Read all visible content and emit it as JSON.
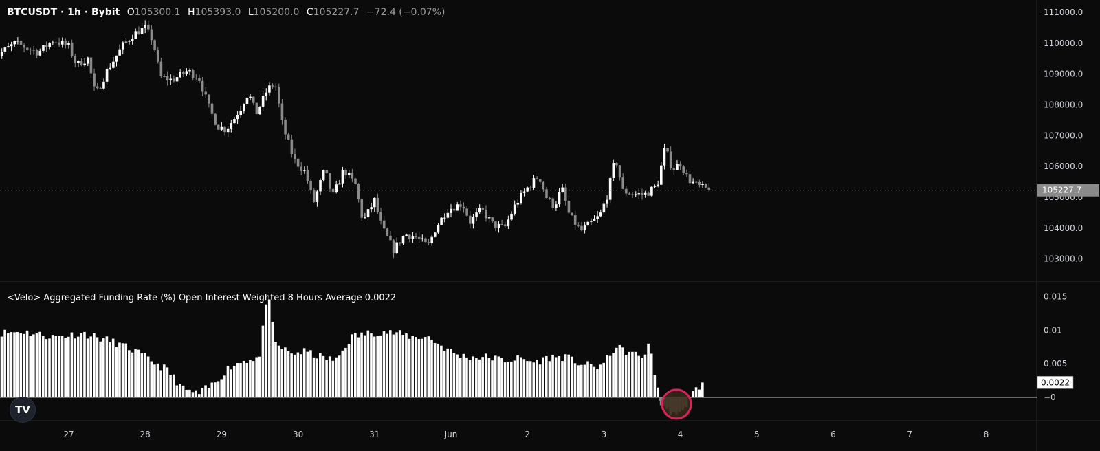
{
  "header": {
    "symbol": "BTCUSDT · 1h · Bybit",
    "open_label": "O",
    "open": "105300.1",
    "high_label": "H",
    "high": "105393.0",
    "low_label": "L",
    "low": "105200.0",
    "close_label": "C",
    "close": "105227.7",
    "change": "−72.4 (−0.07%)"
  },
  "indicator": {
    "title": "<Velo> Aggregated Funding Rate (%) Open Interest Weighted 8 Hours Average 0.0022",
    "value_tag": "0.0022"
  },
  "logo_text": "TV",
  "colors": {
    "background": "#0b0b0b",
    "candle_up": "#ffffff",
    "candle_down": "#8a8a8a",
    "price_tag": "#8a8a8a",
    "highlight_circle": "#d6245a",
    "highlight_fill": "#3a2a1a"
  },
  "chart_data": [
    {
      "type": "candlestick",
      "title": "BTCUSDT · 1h · Bybit",
      "y_ticks": [
        "103000.0",
        "104000.0",
        "105000.0",
        "106000.0",
        "107000.0",
        "108000.0",
        "109000.0",
        "110000.0",
        "111000.0"
      ],
      "ylim": [
        102300,
        111400
      ],
      "x_ticks": [
        "27",
        "28",
        "29",
        "30",
        "31",
        "Jun",
        "2",
        "3",
        "4",
        "5",
        "6",
        "7",
        "8"
      ],
      "last_price": "105227.7",
      "close_path": [
        [
          26.0,
          109500
        ],
        [
          26.3,
          110000
        ],
        [
          26.6,
          109700
        ],
        [
          26.8,
          110100
        ],
        [
          27.0,
          109900
        ],
        [
          27.1,
          109300
        ],
        [
          27.25,
          109500
        ],
        [
          27.35,
          108300
        ],
        [
          27.5,
          109100
        ],
        [
          27.7,
          109900
        ],
        [
          27.85,
          110300
        ],
        [
          28.0,
          110500
        ],
        [
          28.1,
          110100
        ],
        [
          28.2,
          108900
        ],
        [
          28.35,
          108800
        ],
        [
          28.55,
          109100
        ],
        [
          28.7,
          108900
        ],
        [
          28.85,
          107800
        ],
        [
          28.95,
          107300
        ],
        [
          29.05,
          107200
        ],
        [
          29.15,
          107500
        ],
        [
          29.25,
          107900
        ],
        [
          29.35,
          108400
        ],
        [
          29.45,
          107700
        ],
        [
          29.6,
          108500
        ],
        [
          29.7,
          108700
        ],
        [
          29.8,
          107300
        ],
        [
          29.95,
          106200
        ],
        [
          30.1,
          105800
        ],
        [
          30.2,
          104800
        ],
        [
          30.35,
          105900
        ],
        [
          30.45,
          105000
        ],
        [
          30.6,
          105900
        ],
        [
          30.75,
          105400
        ],
        [
          30.85,
          104200
        ],
        [
          31.0,
          104900
        ],
        [
          31.1,
          104000
        ],
        [
          31.25,
          103300
        ],
        [
          31.4,
          103800
        ],
        [
          31.55,
          103700
        ],
        [
          31.7,
          103400
        ],
        [
          31.8,
          104000
        ],
        [
          31.95,
          104600
        ],
        [
          32.05,
          104700
        ],
        [
          32.15,
          104800
        ],
        [
          32.25,
          104200
        ],
        [
          32.4,
          104600
        ],
        [
          32.55,
          104100
        ],
        [
          32.7,
          104000
        ],
        [
          32.85,
          104800
        ],
        [
          33.0,
          105300
        ],
        [
          33.15,
          105700
        ],
        [
          33.25,
          105000
        ],
        [
          33.35,
          104700
        ],
        [
          33.45,
          105300
        ],
        [
          33.55,
          104400
        ],
        [
          33.7,
          103900
        ],
        [
          33.85,
          104200
        ],
        [
          33.95,
          104400
        ],
        [
          34.05,
          105100
        ],
        [
          34.15,
          106300
        ],
        [
          34.25,
          105200
        ],
        [
          34.4,
          105100
        ],
        [
          34.55,
          105100
        ],
        [
          34.7,
          105400
        ],
        [
          34.8,
          106600
        ],
        [
          34.9,
          105900
        ],
        [
          35.0,
          106100
        ],
        [
          35.1,
          105600
        ],
        [
          35.2,
          105400
        ],
        [
          35.3,
          105300
        ],
        [
          35.4,
          105227.7
        ]
      ]
    },
    {
      "type": "bar",
      "title": "<Velo> Aggregated Funding Rate (%) Open Interest Weighted 8 Hours Average 0.0022",
      "y_ticks": [
        "−0",
        "0.005",
        "0.01",
        "0.015"
      ],
      "ylim": [
        -0.0035,
        0.0172
      ],
      "last_value": 0.0022,
      "profile": [
        [
          26.0,
          0.0095
        ],
        [
          26.4,
          0.0098
        ],
        [
          26.8,
          0.009
        ],
        [
          27.2,
          0.0095
        ],
        [
          27.6,
          0.0082
        ],
        [
          27.85,
          0.007
        ],
        [
          28.0,
          0.006
        ],
        [
          28.3,
          0.004
        ],
        [
          28.5,
          0.0012
        ],
        [
          28.7,
          0.0005
        ],
        [
          28.9,
          0.002
        ],
        [
          29.1,
          0.0045
        ],
        [
          29.3,
          0.0055
        ],
        [
          29.5,
          0.006
        ],
        [
          29.6,
          0.016
        ],
        [
          29.7,
          0.008
        ],
        [
          29.9,
          0.0065
        ],
        [
          30.1,
          0.0068
        ],
        [
          30.3,
          0.006
        ],
        [
          30.5,
          0.0055
        ],
        [
          30.7,
          0.009
        ],
        [
          30.9,
          0.0095
        ],
        [
          31.1,
          0.0098
        ],
        [
          31.3,
          0.0095
        ],
        [
          31.5,
          0.009
        ],
        [
          31.7,
          0.009
        ],
        [
          31.9,
          0.0075
        ],
        [
          32.1,
          0.0062
        ],
        [
          32.3,
          0.006
        ],
        [
          32.5,
          0.006
        ],
        [
          32.7,
          0.0055
        ],
        [
          32.9,
          0.0058
        ],
        [
          33.1,
          0.0052
        ],
        [
          33.3,
          0.006
        ],
        [
          33.5,
          0.006
        ],
        [
          33.7,
          0.005
        ],
        [
          33.9,
          0.0045
        ],
        [
          34.0,
          0.005
        ],
        [
          34.15,
          0.0075
        ],
        [
          34.3,
          0.0068
        ],
        [
          34.5,
          0.006
        ],
        [
          34.6,
          0.0078
        ],
        [
          34.68,
          0.003
        ],
        [
          34.75,
          -0.001
        ],
        [
          34.85,
          -0.002
        ],
        [
          34.95,
          -0.0025
        ],
        [
          35.05,
          -0.0018
        ],
        [
          35.15,
          0.0005
        ],
        [
          35.3,
          0.0022
        ]
      ]
    }
  ]
}
